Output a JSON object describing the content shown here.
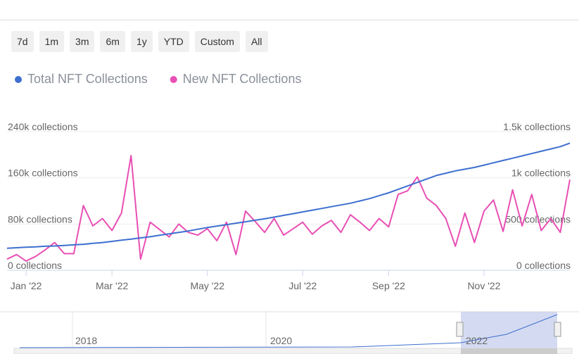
{
  "range_buttons": [
    "7d",
    "1m",
    "3m",
    "6m",
    "1y",
    "YTD",
    "Custom",
    "All"
  ],
  "chart_data": {
    "type": "line",
    "categories": [
      null,
      null,
      "Jan '22",
      null,
      null,
      null,
      null,
      null,
      null,
      null,
      null,
      "Mar '22",
      null,
      null,
      null,
      null,
      null,
      null,
      null,
      null,
      null,
      "May '22",
      null,
      null,
      null,
      null,
      null,
      null,
      null,
      null,
      null,
      "Jul '22",
      null,
      null,
      null,
      null,
      null,
      null,
      null,
      null,
      "Sep '22",
      null,
      null,
      null,
      null,
      null,
      null,
      null,
      null,
      null,
      "Nov '22",
      null,
      null,
      null,
      null,
      null,
      null,
      null,
      null,
      null
    ],
    "series": [
      {
        "name": "Total NFT Collections",
        "color": "#3d6fcf",
        "values": [
          38000,
          39000,
          40000,
          40500,
          41500,
          42000,
          43000,
          44000,
          45000,
          46500,
          48000,
          50000,
          52000,
          54000,
          56000,
          58000,
          60500,
          63000,
          65500,
          68000,
          71000,
          74000,
          76500,
          79000,
          81500,
          84000,
          86500,
          89000,
          92000,
          95000,
          98000,
          101000,
          104000,
          107000,
          110000,
          113000,
          116000,
          120000,
          124000,
          129000,
          134000,
          140000,
          146000,
          152000,
          158000,
          164000,
          168000,
          172000,
          175000,
          178000,
          182000,
          186000,
          190000,
          194000,
          198000,
          202000,
          206000,
          210000,
          214000,
          220000
        ]
      },
      {
        "name": "New NFT Collections",
        "color": "#e84fb4",
        "axis": "y2",
        "values": [
          120,
          170,
          100,
          150,
          220,
          300,
          180,
          180,
          700,
          480,
          560,
          430,
          620,
          1240,
          120,
          520,
          440,
          360,
          500,
          410,
          380,
          450,
          320,
          520,
          170,
          640,
          530,
          410,
          560,
          380,
          450,
          520,
          390,
          480,
          540,
          410,
          600,
          520,
          430,
          560,
          470,
          820,
          860,
          1010,
          780,
          700,
          560,
          260,
          620,
          300,
          640,
          760,
          420,
          870,
          480,
          820,
          430,
          560,
          410,
          980
        ]
      }
    ],
    "ylim": [
      0,
      240000
    ],
    "yticks": [
      {
        "value": 0,
        "label": "0 collections"
      },
      {
        "value": 80000,
        "label": "80k collections"
      },
      {
        "value": 160000,
        "label": "160k collections"
      },
      {
        "value": 240000,
        "label": "240k collections"
      }
    ],
    "y2lim": [
      0,
      1500
    ],
    "y2ticks": [
      {
        "value": 0,
        "label": "0 collections"
      },
      {
        "value": 500,
        "label": "500 collections"
      },
      {
        "value": 1000,
        "label": "1k collections"
      },
      {
        "value": 1500,
        "label": "1.5k collections"
      }
    ],
    "grid": true,
    "legend": "top-left"
  },
  "navigator": {
    "labels": [
      "2018",
      "2020",
      "2022"
    ]
  }
}
